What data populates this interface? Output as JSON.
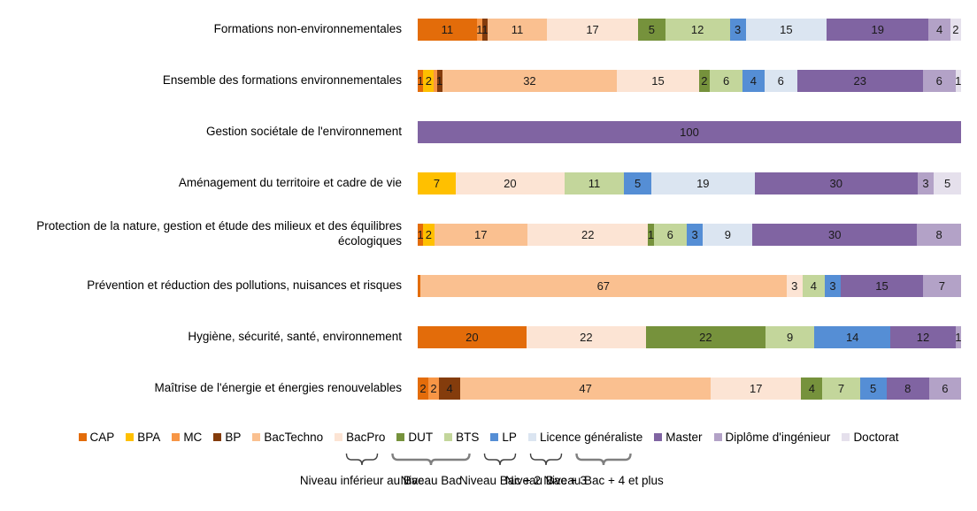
{
  "chart_data": {
    "type": "bar",
    "orientation": "horizontal-stacked",
    "unit": "percent",
    "xlim": [
      0,
      100
    ],
    "grid": false,
    "legend_position": "bottom",
    "series": [
      {
        "name": "CAP",
        "color": "#E36C0A"
      },
      {
        "name": "BPA",
        "color": "#FFC000"
      },
      {
        "name": "MC",
        "color": "#F79646"
      },
      {
        "name": "BP",
        "color": "#843C0C"
      },
      {
        "name": "BacTechno",
        "color": "#FAC090"
      },
      {
        "name": "BacPro",
        "color": "#FCE4D4"
      },
      {
        "name": "DUT",
        "color": "#76923C"
      },
      {
        "name": "BTS",
        "color": "#C3D69B"
      },
      {
        "name": "LP",
        "color": "#558ED5"
      },
      {
        "name": "Licence généraliste",
        "color": "#DBE5F1"
      },
      {
        "name": "Master",
        "color": "#8064A2"
      },
      {
        "name": "Diplôme d'ingénieur",
        "color": "#B3A2C7"
      },
      {
        "name": "Doctorat",
        "color": "#E5E0EC"
      }
    ],
    "rows": [
      {
        "category": "Formations non-environnementales",
        "values": [
          11,
          0,
          1,
          1,
          11,
          17,
          5,
          12,
          3,
          15,
          19,
          4,
          2
        ],
        "labels": [
          "11",
          "",
          "1",
          "1",
          "11",
          "17",
          "5",
          "12",
          "3",
          "15",
          "19",
          "4",
          "2"
        ]
      },
      {
        "category": "Ensemble des formations environnementales",
        "values": [
          1,
          2,
          0.5,
          1,
          32,
          15,
          2,
          6,
          4,
          6,
          23,
          6,
          1
        ],
        "labels": [
          "1",
          "2",
          "",
          "1",
          "32",
          "15",
          "2",
          "6",
          "4",
          "6",
          "23",
          "6",
          "1"
        ]
      },
      {
        "category": "Gestion sociétale de l'environnement",
        "values": [
          0,
          0,
          0,
          0,
          0,
          0,
          0,
          0,
          0,
          0,
          100,
          0,
          0
        ],
        "labels": [
          "",
          "",
          "",
          "",
          "",
          "",
          "",
          "",
          "",
          "",
          "100",
          "",
          ""
        ]
      },
      {
        "category": "Aménagement du territoire et cadre de vie",
        "values": [
          0,
          7,
          0,
          0,
          0,
          20,
          0,
          11,
          5,
          19,
          30,
          3,
          5
        ],
        "labels": [
          "",
          "7",
          "",
          "",
          "",
          "20",
          "",
          "11",
          "5",
          "19",
          "30",
          "3",
          "5"
        ]
      },
      {
        "category": "Protection de la nature, gestion et étude des milieux et des équilibres écologiques",
        "values": [
          1,
          2,
          0,
          0,
          17,
          22,
          1,
          6,
          3,
          9,
          30,
          8,
          0
        ],
        "labels": [
          "1",
          "2",
          "",
          "",
          "17",
          "22",
          "1",
          "6",
          "3",
          "9",
          "30",
          "8",
          ""
        ]
      },
      {
        "category": "Prévention et réduction des pollutions, nuisances et risques",
        "values": [
          0.5,
          0,
          0,
          0,
          67,
          3,
          0,
          4,
          3,
          0,
          15,
          7,
          0
        ],
        "labels": [
          "",
          "",
          "",
          "",
          "67",
          "3",
          "",
          "4",
          "3",
          "",
          "15",
          "7",
          ""
        ]
      },
      {
        "category": "Hygiène, sécurité, santé, environnement",
        "values": [
          20,
          0,
          0,
          0,
          0,
          22,
          22,
          9,
          14,
          0,
          12,
          1,
          0
        ],
        "labels": [
          "20",
          "",
          "",
          "",
          "",
          "22",
          "22",
          "9",
          "14",
          "",
          "12",
          "1",
          ""
        ]
      },
      {
        "category": "Maîtrise de l'énergie et énergies renouvelables",
        "values": [
          2,
          0,
          2,
          4,
          47,
          17,
          4,
          7,
          5,
          0,
          8,
          6,
          0
        ],
        "labels": [
          "2",
          "",
          "2",
          "4",
          "47",
          "17",
          "4",
          "7",
          "5",
          "",
          "8",
          "6",
          ""
        ]
      }
    ]
  },
  "level_groups": [
    {
      "label": "Niveau inférieur au Bac",
      "series_from": 0,
      "series_to": 1
    },
    {
      "label": "Niveau Bac",
      "series_from": 2,
      "series_to": 5
    },
    {
      "label": "Niveau Bac + 2",
      "series_from": 6,
      "series_to": 7
    },
    {
      "label": "Niveau Bac + 3",
      "series_from": 8,
      "series_to": 9
    },
    {
      "label": "Niveau Bac + 4 et plus",
      "series_from": 10,
      "series_to": 12
    }
  ]
}
